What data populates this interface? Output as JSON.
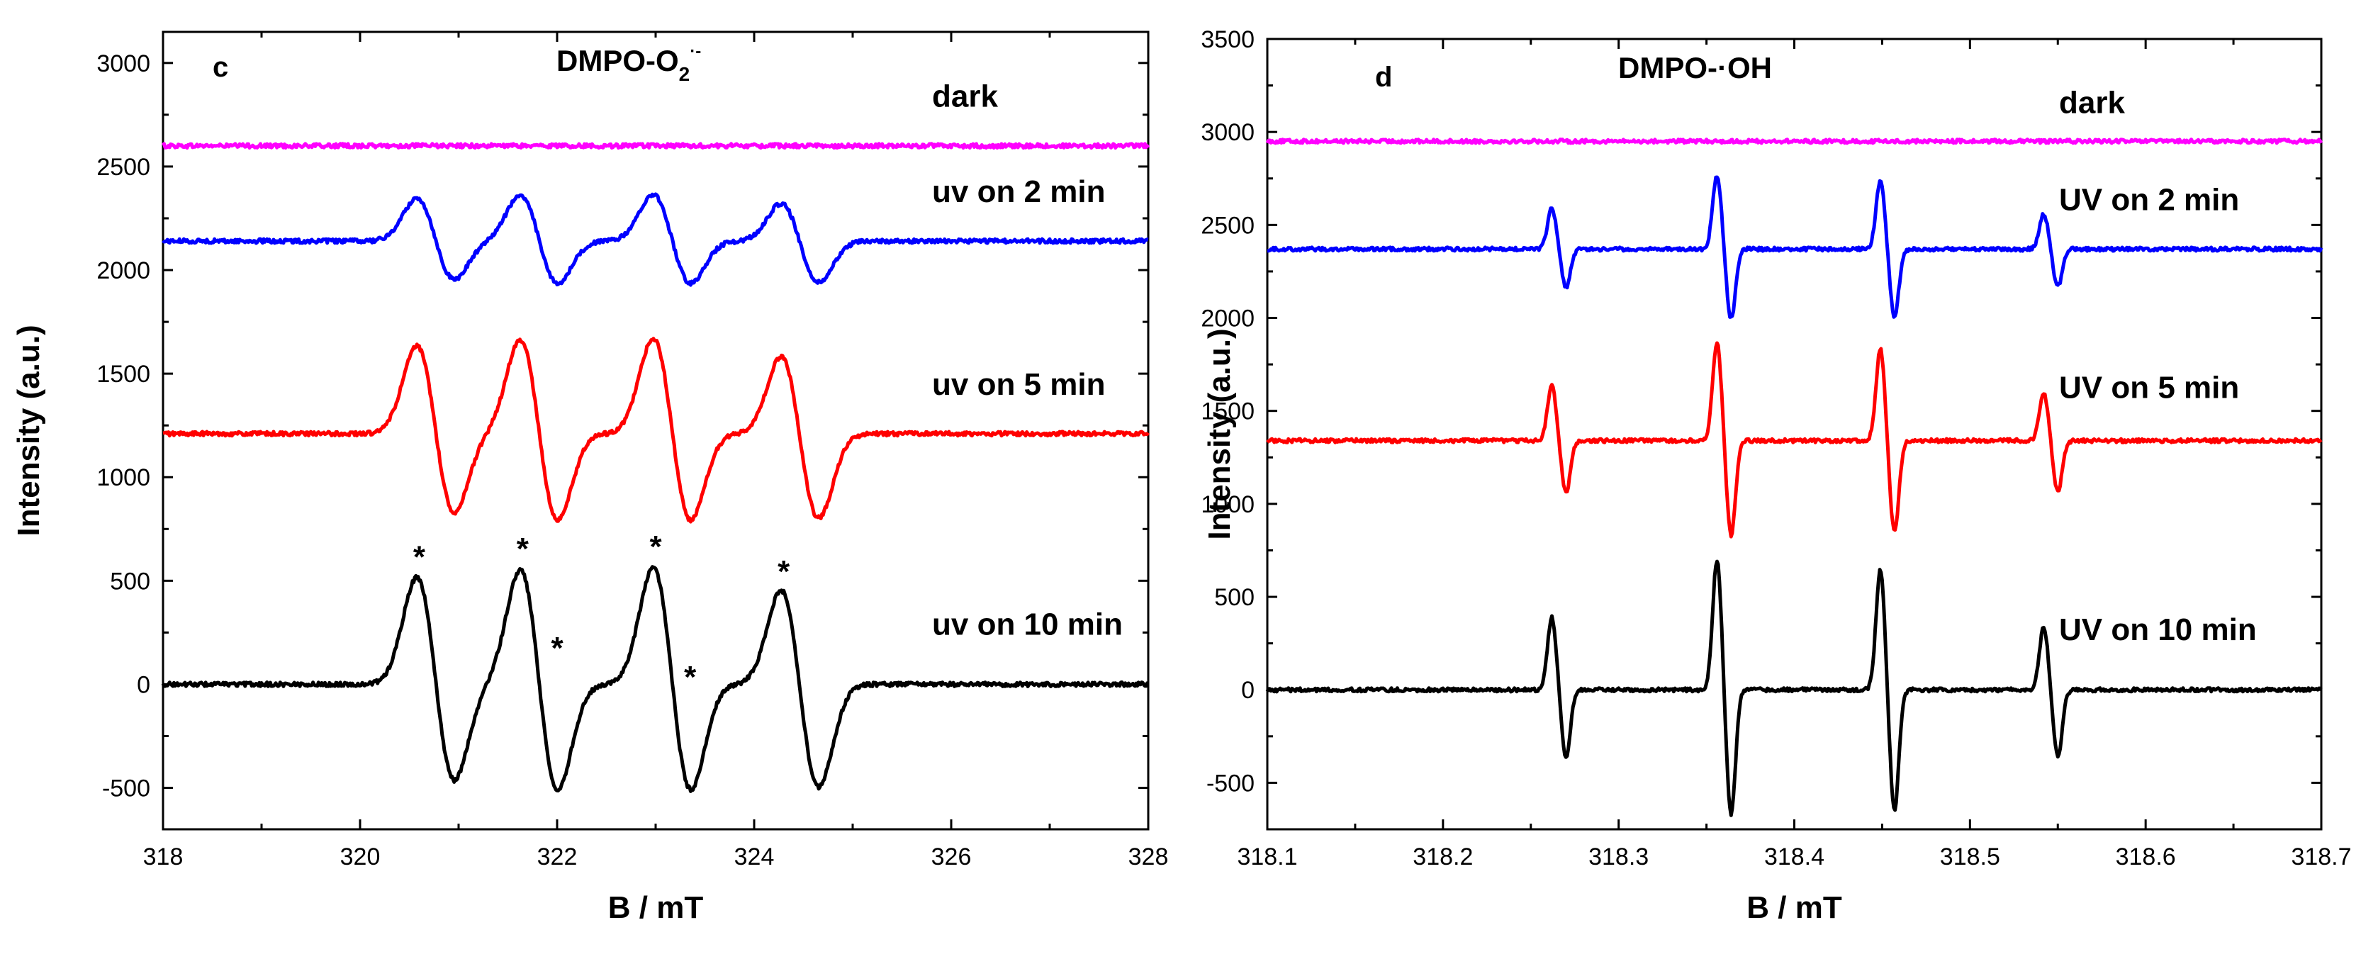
{
  "chart_data": [
    {
      "type": "line",
      "panel": "c",
      "title": "DMPO-O",
      "title_sub": "2",
      "title_sup": "·-",
      "xlabel": "B / mT",
      "ylabel": "Intensity (a.u.)",
      "xlim": [
        318,
        328
      ],
      "ylim": [
        -700,
        3150
      ],
      "xticks": [
        318,
        320,
        322,
        324,
        326,
        328
      ],
      "yticks": [
        -500,
        0,
        500,
        1000,
        1500,
        2000,
        2500,
        3000
      ],
      "peaks": [
        320.6,
        321.65,
        323.0,
        324.3
      ],
      "peak_width": 0.22,
      "pos_amp": [
        560,
        600,
        610,
        500
      ],
      "neg_amp": [
        510,
        560,
        560,
        540
      ],
      "neg_offset": 0.33,
      "stars": [
        {
          "x": 320.6,
          "y": 640,
          "label": "*"
        },
        {
          "x": 321.65,
          "y": 680,
          "label": "*"
        },
        {
          "x": 322.0,
          "y": 200,
          "label": "*"
        },
        {
          "x": 323.0,
          "y": 690,
          "label": "*"
        },
        {
          "x": 323.35,
          "y": 60,
          "label": "*"
        },
        {
          "x": 324.3,
          "y": 570,
          "label": "*"
        }
      ],
      "series": [
        {
          "name": "dark",
          "color": "#ff00ff",
          "baseline": 2600,
          "scale": 0.0,
          "noise": 10
        },
        {
          "name": "uv on 2 min",
          "color": "#0000ff",
          "baseline": 2140,
          "scale": 0.4,
          "noise": 10
        },
        {
          "name": "uv on 5 min",
          "color": "#ff0000",
          "baseline": 1210,
          "scale": 0.82,
          "noise": 10
        },
        {
          "name": "uv on 10 min",
          "color": "#000000",
          "baseline": 0,
          "scale": 1.0,
          "noise": 10
        }
      ]
    },
    {
      "type": "line",
      "panel": "d",
      "title": "DMPO-·OH",
      "xlabel": "B / mT",
      "ylabel": "Intensity (a.u.)",
      "xlim": [
        318.1,
        318.7
      ],
      "ylim": [
        -750,
        3500
      ],
      "xticks": [
        318.1,
        318.2,
        318.3,
        318.4,
        318.5,
        318.6,
        318.7
      ],
      "yticks": [
        -500,
        0,
        500,
        1000,
        1500,
        2000,
        2500,
        3000,
        3500
      ],
      "peaks": [
        318.262,
        318.356,
        318.449,
        318.542
      ],
      "peak_width": 0.0035,
      "pos_amp": [
        390,
        700,
        650,
        340
      ],
      "neg_amp": [
        370,
        670,
        650,
        360
      ],
      "neg_offset": 0.008,
      "series": [
        {
          "name": "dark",
          "color": "#ff00ff",
          "baseline": 2950,
          "scale": 0.0,
          "noise": 10
        },
        {
          "name": "UV on 2 min",
          "color": "#0000ff",
          "baseline": 2370,
          "scale": 0.56,
          "noise": 10
        },
        {
          "name": "UV on 5 min",
          "color": "#ff0000",
          "baseline": 1340,
          "scale": 0.76,
          "noise": 10
        },
        {
          "name": "UV on 10 min",
          "color": "#000000",
          "baseline": 0,
          "scale": 1.0,
          "noise": 10
        }
      ]
    }
  ]
}
